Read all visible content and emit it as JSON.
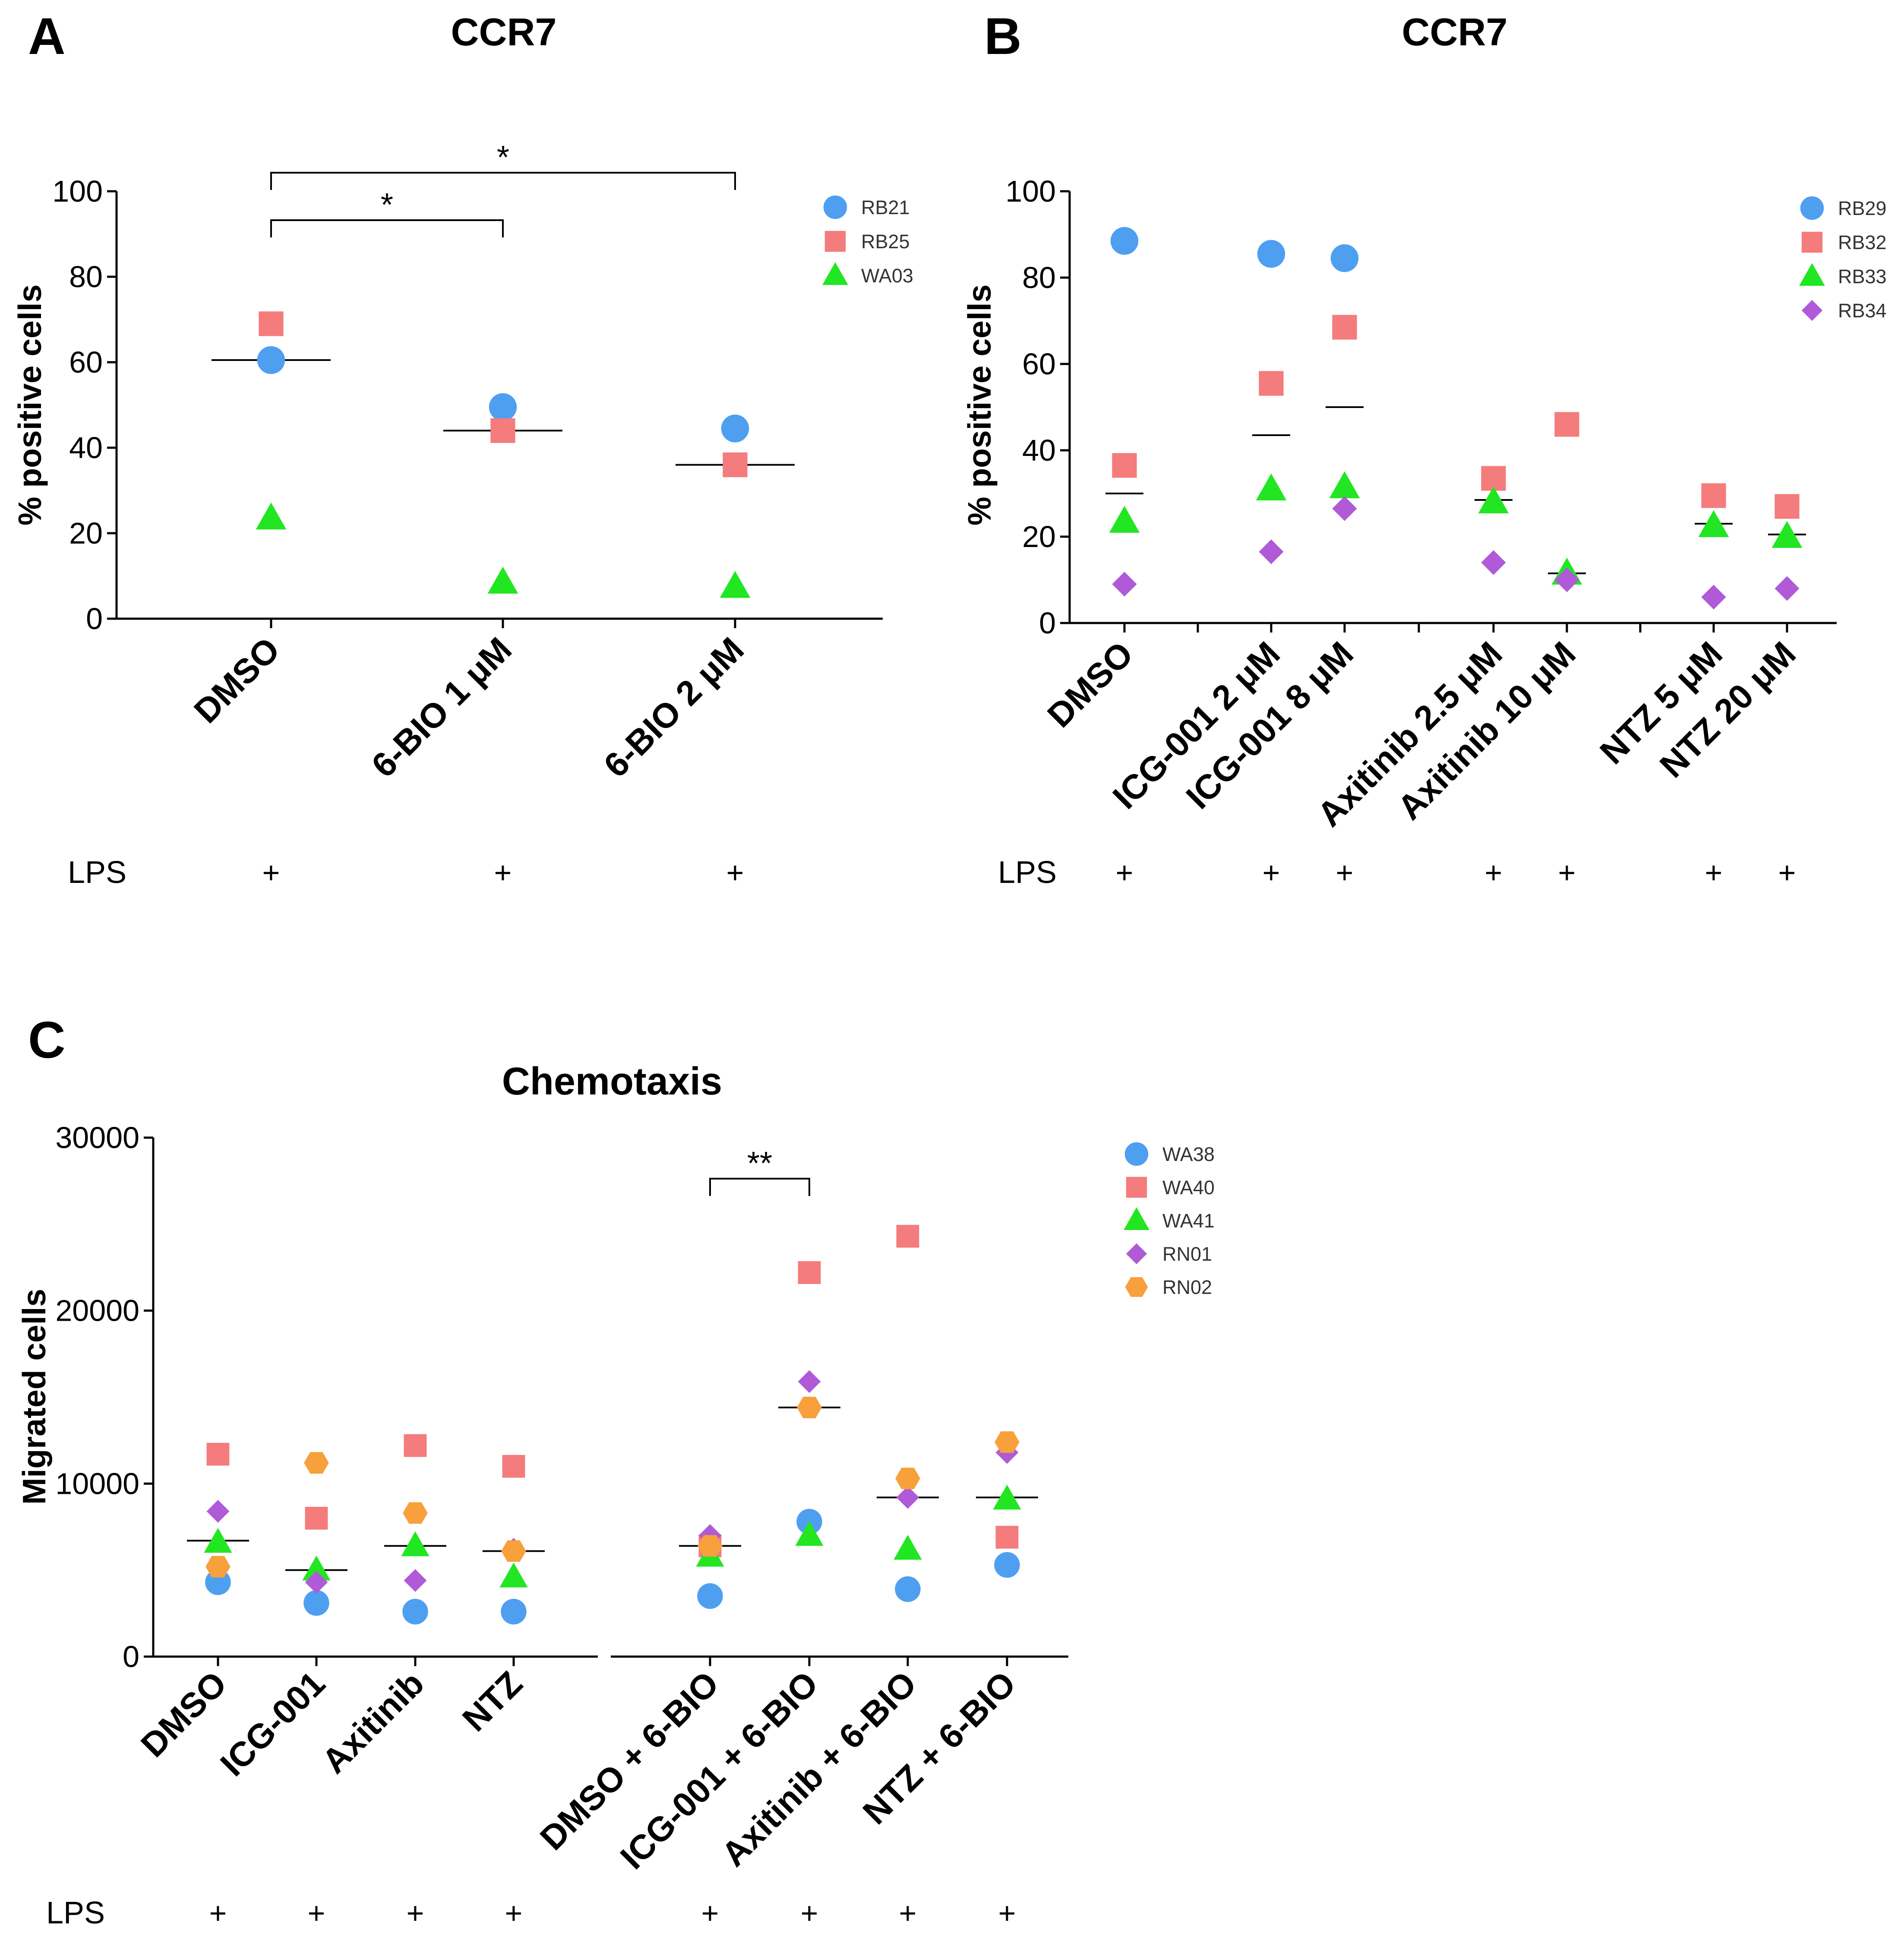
{
  "chart_data": [
    {
      "id": "A",
      "type": "scatter",
      "panel_letter": "A",
      "title": "CCR7",
      "ylabel": "% positive cells",
      "ylim": [
        0,
        100
      ],
      "yticks": [
        0,
        20,
        40,
        60,
        80,
        100
      ],
      "categories": [
        "DMSO",
        "6-BIO 1 μM",
        "6-BIO 2 μM"
      ],
      "lps_label": "LPS",
      "lps": [
        "+",
        "+",
        "+"
      ],
      "series": [
        {
          "name": "RB21",
          "color": "#4f9ff0",
          "marker": "circle",
          "values": [
            60.5,
            49.5,
            44.5
          ]
        },
        {
          "name": "RB25",
          "color": "#f47c7c",
          "marker": "square",
          "values": [
            69,
            44,
            36
          ]
        },
        {
          "name": "WA03",
          "color": "#22e622",
          "marker": "triangle",
          "values": [
            23.5,
            8.5,
            7.5
          ]
        }
      ],
      "medians": [
        60.5,
        44,
        36
      ],
      "significance": [
        {
          "from": 0,
          "to": 1,
          "label": "*"
        },
        {
          "from": 0,
          "to": 2,
          "label": "*"
        }
      ]
    },
    {
      "id": "B",
      "type": "scatter",
      "panel_letter": "B",
      "title": "CCR7",
      "ylabel": "% positive cells",
      "ylim": [
        0,
        100
      ],
      "yticks": [
        0,
        20,
        40,
        60,
        80,
        100
      ],
      "categories": [
        "DMSO",
        "ICG-001 2 μM",
        "ICG-001 8 μM",
        "Axitinib 2.5 μM",
        "Axitinib 10 μM",
        "NTZ 5 μM",
        "NTZ 20 μM"
      ],
      "lps_label": "LPS",
      "lps": [
        "+",
        "+",
        "+",
        "+",
        "+",
        "+",
        "+"
      ],
      "series": [
        {
          "name": "RB29",
          "color": "#4f9ff0",
          "marker": "circle",
          "values": [
            88.5,
            85.5,
            84.5,
            null,
            null,
            null,
            null
          ]
        },
        {
          "name": "RB32",
          "color": "#f47c7c",
          "marker": "square",
          "values": [
            36.5,
            55.5,
            68.5,
            33.5,
            46,
            29.5,
            27
          ]
        },
        {
          "name": "RB33",
          "color": "#22e622",
          "marker": "triangle",
          "values": [
            23.5,
            31,
            31.5,
            28,
            11.5,
            22.5,
            20
          ]
        },
        {
          "name": "RB34",
          "color": "#b05ad8",
          "marker": "diamond",
          "values": [
            9,
            16.5,
            26.5,
            14,
            10,
            6,
            8
          ]
        }
      ],
      "medians": [
        30,
        43.5,
        50,
        28.5,
        11.5,
        23,
        20.5
      ]
    },
    {
      "id": "C",
      "type": "scatter",
      "panel_letter": "C",
      "title": "Chemotaxis",
      "ylabel": "Migrated cells",
      "ylim": [
        0,
        30000
      ],
      "yticks": [
        0,
        10000,
        20000,
        30000
      ],
      "categories": [
        "DMSO",
        "ICG-001",
        "Axitinib",
        "NTZ",
        "DMSO + 6-BIO",
        "ICG-001 + 6-BIO",
        "Axitinib + 6-BIO",
        "NTZ + 6-BIO"
      ],
      "lps_label": "LPS",
      "lps": [
        "+",
        "+",
        "+",
        "+",
        "+",
        "+",
        "+",
        "+"
      ],
      "series": [
        {
          "name": "WA38",
          "color": "#4f9ff0",
          "marker": "circle",
          "values": [
            4300,
            3100,
            2600,
            2600,
            3500,
            7800,
            3900,
            5300
          ]
        },
        {
          "name": "WA40",
          "color": "#f47c7c",
          "marker": "square",
          "values": [
            11700,
            8000,
            12200,
            11000,
            6400,
            22200,
            24300,
            6900
          ]
        },
        {
          "name": "WA41",
          "color": "#22e622",
          "marker": "triangle",
          "values": [
            6600,
            5000,
            6400,
            4600,
            5800,
            7000,
            6200,
            9100
          ]
        },
        {
          "name": "RN01",
          "color": "#b05ad8",
          "marker": "diamond",
          "values": [
            8400,
            4300,
            4400,
            6200,
            7000,
            15900,
            9200,
            11800
          ]
        },
        {
          "name": "RN02",
          "color": "#f7a03c",
          "marker": "hexagon",
          "values": [
            5200,
            11200,
            8300,
            6100,
            6400,
            14400,
            10300,
            12400
          ]
        }
      ],
      "medians": [
        6700,
        5000,
        6400,
        6100,
        6400,
        14400,
        9200,
        9200
      ],
      "significance": [
        {
          "from": 4,
          "to": 5,
          "label": "**"
        }
      ]
    }
  ]
}
